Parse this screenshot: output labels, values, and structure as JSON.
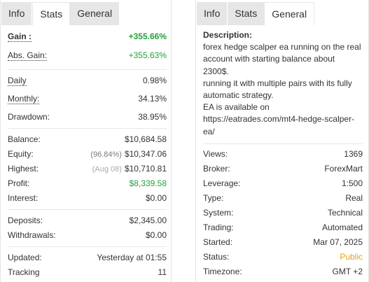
{
  "left_panel": {
    "tabs": {
      "info": "Info",
      "stats": "Stats",
      "general": "General"
    },
    "gain": {
      "label": "Gain :",
      "value": "+355.66%"
    },
    "abs_gain": {
      "label": "Abs. Gain:",
      "value": "+355.63%"
    },
    "daily": {
      "label": "Daily",
      "value": "0.98%"
    },
    "monthly": {
      "label": "Monthly:",
      "value": "34.13%"
    },
    "drawdown": {
      "label": "Drawdown:",
      "value": "38.95%"
    },
    "balance": {
      "label": "Balance:",
      "value": "$10,684.58"
    },
    "equity": {
      "label": "Equity:",
      "note": "(96.84%)",
      "value": "$10,347.06"
    },
    "highest": {
      "label": "Highest:",
      "note": "(Aug 08)",
      "value": "$10,710.81"
    },
    "profit": {
      "label": "Profit:",
      "value": "$8,339.58"
    },
    "interest": {
      "label": "Interest:",
      "value": "$0.00"
    },
    "deposits": {
      "label": "Deposits:",
      "value": "$2,345.00"
    },
    "withdrawals": {
      "label": "Withdrawals:",
      "value": "$0.00"
    },
    "updated": {
      "label": "Updated:",
      "value": "Yesterday at 01:55"
    },
    "tracking": {
      "label": "Tracking",
      "value": "11"
    }
  },
  "right_panel": {
    "tabs": {
      "info": "Info",
      "stats": "Stats",
      "general": "General"
    },
    "description": {
      "heading": "Description:",
      "lines": [
        "forex hedge scalper ea running on the real account with starting balance about 2300$.",
        "running it with multiple pairs with its fully automatic strategy.",
        "EA is available on https://eatrades.com/mt4-hedge-scalper-ea/"
      ]
    },
    "views": {
      "label": "Views:",
      "value": "1369"
    },
    "broker": {
      "label": "Broker:",
      "value": "ForexMart"
    },
    "leverage": {
      "label": "Leverage:",
      "value": "1:500"
    },
    "type": {
      "label": "Type:",
      "value": "Real"
    },
    "system": {
      "label": "System:",
      "value": "Technical"
    },
    "trading": {
      "label": "Trading:",
      "value": "Automated"
    },
    "started": {
      "label": "Started:",
      "value": "Mar 07, 2025"
    },
    "status": {
      "label": "Status:",
      "value": "Public"
    },
    "timezone": {
      "label": "Timezone:",
      "value": "GMT +2"
    }
  },
  "colors": {
    "positive": "#22a33a",
    "status_public": "#e6a317",
    "tab_inactive": "#e6e6e6"
  }
}
